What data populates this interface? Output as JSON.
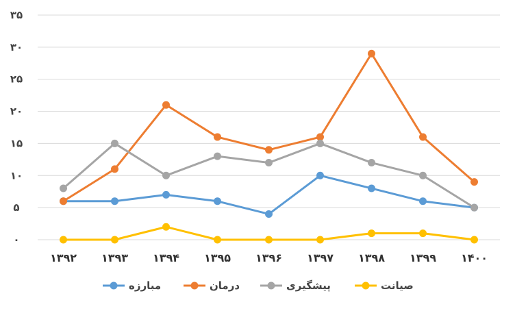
{
  "chart_data": {
    "type": "line",
    "x": [
      "۱۳۹۲",
      "۱۳۹۳",
      "۱۳۹۴",
      "۱۳۹۵",
      "۱۳۹۶",
      "۱۳۹۷",
      "۱۳۹۸",
      "۱۳۹۹",
      "۱۴۰۰"
    ],
    "yticks": [
      "۰",
      "۵",
      "۱۰",
      "۱۵",
      "۲۰",
      "۲۵",
      "۳۰",
      "۳۵"
    ],
    "ylim": [
      0,
      35
    ],
    "grid": true,
    "legend_position": "bottom",
    "series": [
      {
        "name": "مبارزه",
        "color": "#5B9BD5",
        "values": [
          6,
          6,
          7,
          6,
          4,
          10,
          8,
          6,
          5
        ]
      },
      {
        "name": "درمان",
        "color": "#ED7D31",
        "values": [
          6,
          11,
          21,
          16,
          14,
          16,
          29,
          16,
          9
        ]
      },
      {
        "name": "پیشگیری",
        "color": "#A5A5A5",
        "values": [
          8,
          15,
          10,
          13,
          12,
          15,
          12,
          10,
          5
        ]
      },
      {
        "name": "صیانت",
        "color": "#FFC000",
        "values": [
          0,
          0,
          2,
          0,
          0,
          0,
          1,
          1,
          0
        ]
      }
    ]
  }
}
